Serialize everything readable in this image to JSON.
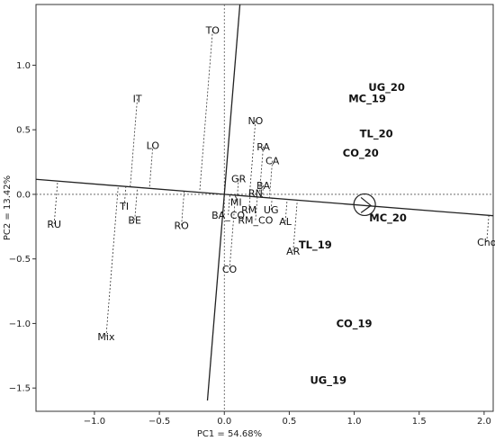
{
  "chart_data": {
    "type": "scatter",
    "xlabel": "PC1 = 54.68%",
    "ylabel": "PC2 = 13.42%",
    "xlim": [
      -1.45,
      2.07
    ],
    "ylim": [
      -1.68,
      1.47
    ],
    "xticks": [
      -1.0,
      -0.5,
      0.0,
      0.5,
      1.0,
      1.5,
      2.0
    ],
    "xtick_labels": [
      "−1.0",
      "−0.5",
      "0.0",
      "0.5",
      "1.0",
      "1.5",
      "2.0"
    ],
    "yticks": [
      1.0,
      0.5,
      0.0,
      -0.5,
      -1.0,
      -1.5
    ],
    "ytick_labels": [
      "1.0",
      "0.5",
      "0.0",
      "−0.5",
      "−1.0",
      "−1.5"
    ],
    "genotypes": [
      {
        "label": "TO",
        "x": -0.09,
        "y": 1.27
      },
      {
        "label": "IT",
        "x": -0.67,
        "y": 0.74
      },
      {
        "label": "LO",
        "x": -0.55,
        "y": 0.38
      },
      {
        "label": "NO",
        "x": 0.24,
        "y": 0.57
      },
      {
        "label": "RA",
        "x": 0.3,
        "y": 0.37
      },
      {
        "label": "CA",
        "x": 0.37,
        "y": 0.26
      },
      {
        "label": "GR",
        "x": 0.11,
        "y": 0.12
      },
      {
        "label": "BA",
        "x": 0.3,
        "y": 0.07
      },
      {
        "label": "RN",
        "x": 0.24,
        "y": 0.01
      },
      {
        "label": "MI",
        "x": 0.09,
        "y": -0.06
      },
      {
        "label": "RM",
        "x": 0.19,
        "y": -0.12
      },
      {
        "label": "UG",
        "x": 0.36,
        "y": -0.12
      },
      {
        "label": "BA_CO",
        "x": 0.03,
        "y": -0.16
      },
      {
        "label": "RM_CO",
        "x": 0.24,
        "y": -0.2
      },
      {
        "label": "AL",
        "x": 0.47,
        "y": -0.21
      },
      {
        "label": "AR",
        "x": 0.53,
        "y": -0.44
      },
      {
        "label": "CO",
        "x": 0.04,
        "y": -0.58
      },
      {
        "label": "RU",
        "x": -1.31,
        "y": -0.23
      },
      {
        "label": "TI",
        "x": -0.77,
        "y": -0.09
      },
      {
        "label": "BE",
        "x": -0.69,
        "y": -0.2
      },
      {
        "label": "RO",
        "x": -0.33,
        "y": -0.24
      },
      {
        "label": "Mix",
        "x": -0.91,
        "y": -1.1
      },
      {
        "label": "Cho",
        "x": 2.02,
        "y": -0.37
      }
    ],
    "environments": [
      {
        "label": "UG_20",
        "x": 1.25,
        "y": 0.83
      },
      {
        "label": "MC_19",
        "x": 1.1,
        "y": 0.74
      },
      {
        "label": "TL_20",
        "x": 1.17,
        "y": 0.47
      },
      {
        "label": "CO_20",
        "x": 1.05,
        "y": 0.32
      },
      {
        "label": "MC_20",
        "x": 1.26,
        "y": -0.18
      },
      {
        "label": "TL_19",
        "x": 0.7,
        "y": -0.39
      },
      {
        "label": "CO_19",
        "x": 1.0,
        "y": -1.0
      },
      {
        "label": "UG_19",
        "x": 0.8,
        "y": -1.44
      }
    ],
    "average_environment_marker": {
      "x": 1.08,
      "y": -0.08
    },
    "aea_abscissa": {
      "slope": -0.08
    },
    "aea_ordinate": {
      "x_at_top": 0.12,
      "x_at_bottom": -0.13
    }
  }
}
